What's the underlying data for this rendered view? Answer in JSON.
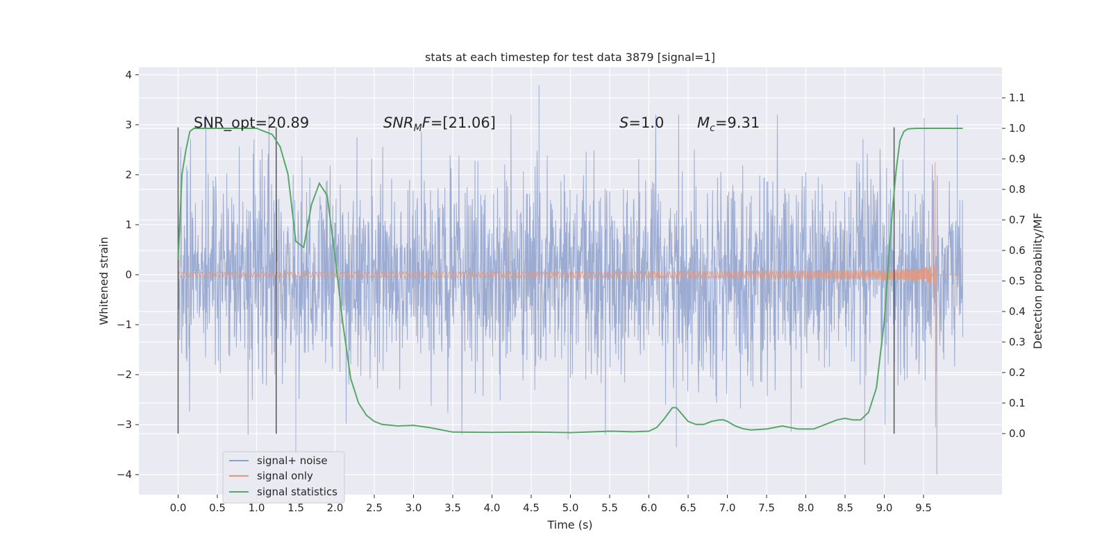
{
  "chart_data": {
    "type": "line",
    "title": "stats at each timestep for test data 3879 [signal=1]",
    "xlabel": "Time (s)",
    "ylabel": "Whitened strain",
    "ylabel_right": "Detection probability/MF",
    "xlim": [
      -0.5,
      10.5
    ],
    "ylim": [
      -4.4,
      4.15
    ],
    "ylim_right": [
      -0.2,
      1.2
    ],
    "x_ticks": [
      "0.0",
      "0.5",
      "1.0",
      "1.5",
      "2.0",
      "2.5",
      "3.0",
      "3.5",
      "4.0",
      "4.5",
      "5.0",
      "5.5",
      "6.0",
      "6.5",
      "7.0",
      "7.5",
      "8.0",
      "8.5",
      "9.0",
      "9.5"
    ],
    "y_ticks": [
      "4",
      "3",
      "2",
      "1",
      "0",
      "−1",
      "−2",
      "−3",
      "−4"
    ],
    "y_ticks_right": [
      "1.1",
      "1.0",
      "0.9",
      "0.8",
      "0.7",
      "0.6",
      "0.5",
      "0.4",
      "0.3",
      "0.2",
      "0.1",
      "0.0"
    ],
    "grid": true,
    "legend_position": "lower-left",
    "annotations": {
      "snr_opt": "SNR_opt=20.89",
      "snr_mf": "=[21.06]",
      "s_val": "=1.0",
      "mc_val": "=9.31"
    },
    "vertical_markers_x": [
      0.0,
      1.25,
      9.125
    ],
    "series": [
      {
        "name": "signal+ noise",
        "color": "#8da0cb",
        "axis": "left",
        "x_range": [
          0,
          10
        ],
        "envelope": 1.0,
        "peaks": [
          [
            4.6,
            3.8
          ],
          [
            9.67,
            -4.0
          ],
          [
            1.5,
            -3.6
          ],
          [
            8.75,
            -3.8
          ],
          [
            6.35,
            -3.45
          ],
          [
            4.97,
            -3.3
          ],
          [
            9.93,
            3.2
          ]
        ]
      },
      {
        "name": "signal only",
        "color": "#e5967a",
        "axis": "left",
        "chirp_end": 9.66,
        "peak_amplitude": [
          2.25,
          -3.05
        ]
      },
      {
        "name": "signal statistics",
        "color": "#55a868",
        "axis": "right",
        "x": [
          0.0,
          0.05,
          0.1,
          0.15,
          0.2,
          0.3,
          0.5,
          0.8,
          1.0,
          1.1,
          1.2,
          1.3,
          1.4,
          1.5,
          1.6,
          1.7,
          1.8,
          1.9,
          2.0,
          2.1,
          2.2,
          2.3,
          2.4,
          2.5,
          2.6,
          2.8,
          3.0,
          3.2,
          3.5,
          4.0,
          4.5,
          5.0,
          5.5,
          5.8,
          6.0,
          6.1,
          6.2,
          6.3,
          6.35,
          6.4,
          6.5,
          6.6,
          6.7,
          6.8,
          6.9,
          6.95,
          7.0,
          7.1,
          7.2,
          7.3,
          7.5,
          7.7,
          7.9,
          8.1,
          8.3,
          8.4,
          8.5,
          8.6,
          8.7,
          8.8,
          8.9,
          9.0,
          9.05,
          9.1,
          9.15,
          9.2,
          9.25,
          9.3,
          9.4,
          9.5,
          9.6,
          9.7,
          9.8,
          9.9,
          10.0
        ],
        "y": [
          0.57,
          0.85,
          0.93,
          0.99,
          1.0,
          1.0,
          1.0,
          1.0,
          1.0,
          0.99,
          0.98,
          0.94,
          0.85,
          0.63,
          0.61,
          0.75,
          0.82,
          0.78,
          0.58,
          0.36,
          0.18,
          0.1,
          0.06,
          0.04,
          0.03,
          0.025,
          0.027,
          0.02,
          0.005,
          0.004,
          0.005,
          0.003,
          0.008,
          0.006,
          0.008,
          0.02,
          0.05,
          0.085,
          0.085,
          0.07,
          0.04,
          0.03,
          0.03,
          0.04,
          0.045,
          0.045,
          0.04,
          0.025,
          0.016,
          0.012,
          0.015,
          0.025,
          0.015,
          0.015,
          0.035,
          0.045,
          0.05,
          0.045,
          0.045,
          0.07,
          0.15,
          0.37,
          0.55,
          0.72,
          0.86,
          0.96,
          0.99,
          0.998,
          1.0,
          1.0,
          1.0,
          1.0,
          1.0,
          1.0,
          1.0
        ]
      }
    ]
  }
}
